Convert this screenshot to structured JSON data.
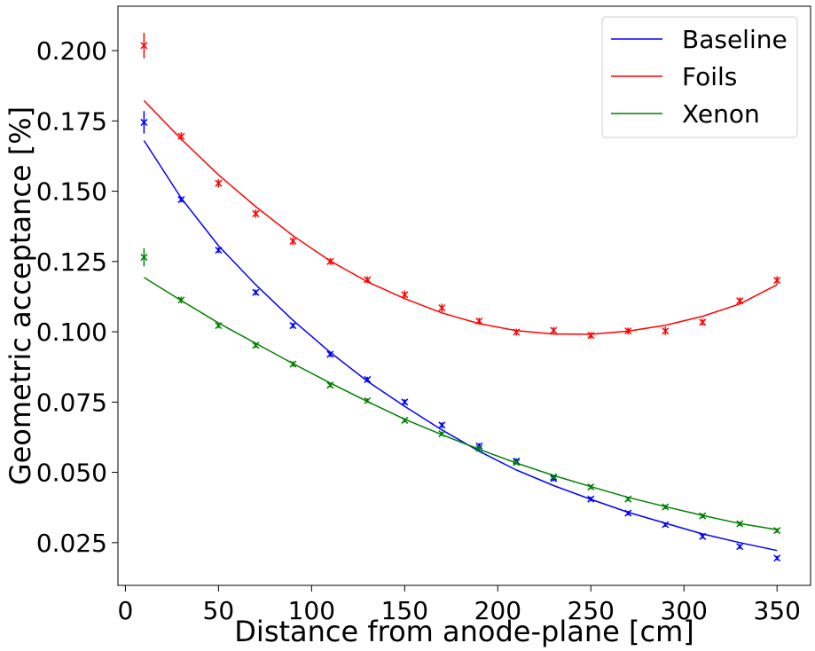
{
  "chart_data": {
    "type": "scatter",
    "xlabel": "Distance from anode-plane [cm]",
    "ylabel": "Geometric acceptance [%]",
    "xlim": [
      -4,
      368
    ],
    "ylim": [
      0.0098,
      0.2158
    ],
    "xticks": [
      0,
      50,
      100,
      150,
      200,
      250,
      300,
      350
    ],
    "xtick_labels": [
      "0",
      "50",
      "100",
      "150",
      "200",
      "250",
      "300",
      "350"
    ],
    "yticks": [
      0.025,
      0.05,
      0.075,
      0.1,
      0.125,
      0.15,
      0.175,
      0.2
    ],
    "ytick_labels": [
      "0.025",
      "0.050",
      "0.075",
      "0.100",
      "0.125",
      "0.150",
      "0.175",
      "0.200"
    ],
    "grid": false,
    "legend_position": "top-right",
    "x": [
      10,
      30,
      50,
      70,
      90,
      110,
      130,
      150,
      170,
      190,
      210,
      230,
      250,
      270,
      290,
      310,
      330,
      350
    ],
    "series": [
      {
        "name": "Baseline",
        "color": "#0000ff",
        "values": [
          0.1745,
          0.147,
          0.129,
          0.114,
          0.1022,
          0.092,
          0.083,
          0.075,
          0.0668,
          0.0594,
          0.054,
          0.0478,
          0.0405,
          0.0355,
          0.0314,
          0.0272,
          0.0236,
          0.0195
        ],
        "errors": [
          0.004,
          0.001,
          0.001,
          0.001,
          0.001,
          0.001,
          0.001,
          0.001,
          0.001,
          0.001,
          0.001,
          0.001,
          0.0008,
          0.0008,
          0.0008,
          0.0008,
          0.0008,
          0.0008
        ],
        "fit": [
          0.168,
          0.1475,
          0.1306,
          0.1167,
          0.1041,
          0.0927,
          0.0824,
          0.0735,
          0.0651,
          0.0575,
          0.0508,
          0.0453,
          0.0404,
          0.0358,
          0.0319,
          0.0281,
          0.025,
          0.0222
        ]
      },
      {
        "name": "Foils",
        "color": "#ff0000",
        "values": [
          0.2018,
          0.1695,
          0.1528,
          0.142,
          0.1322,
          0.125,
          0.1185,
          0.1132,
          0.1085,
          0.1038,
          0.0999,
          0.1005,
          0.0987,
          0.1003,
          0.1003,
          0.1034,
          0.111,
          0.1183
        ],
        "errors": [
          0.0045,
          0.0015,
          0.0015,
          0.0015,
          0.0015,
          0.0012,
          0.0012,
          0.0015,
          0.0015,
          0.0012,
          0.0012,
          0.0012,
          0.0012,
          0.0012,
          0.0015,
          0.0012,
          0.0012,
          0.0015
        ],
        "fit": [
          0.1822,
          0.1685,
          0.1558,
          0.1445,
          0.1342,
          0.1252,
          0.1178,
          0.1118,
          0.1067,
          0.1029,
          0.1004,
          0.0992,
          0.0991,
          0.1002,
          0.1023,
          0.1055,
          0.1099,
          0.1167
        ]
      },
      {
        "name": "Xenon",
        "color": "#008000",
        "values": [
          0.1265,
          0.1113,
          0.1022,
          0.0952,
          0.0885,
          0.081,
          0.0755,
          0.0685,
          0.0637,
          0.0585,
          0.0535,
          0.0484,
          0.0448,
          0.0405,
          0.0377,
          0.0345,
          0.0317,
          0.0293
        ],
        "errors": [
          0.0032,
          0.0012,
          0.001,
          0.001,
          0.001,
          0.0008,
          0.0008,
          0.0008,
          0.0008,
          0.0008,
          0.0008,
          0.0008,
          0.0008,
          0.0008,
          0.0008,
          0.0008,
          0.0008,
          0.0008
        ],
        "fit": [
          0.1193,
          0.1111,
          0.1031,
          0.0959,
          0.0887,
          0.0818,
          0.0752,
          0.0689,
          0.0634,
          0.0582,
          0.0533,
          0.0489,
          0.0449,
          0.0411,
          0.0378,
          0.0347,
          0.0318,
          0.0296
        ]
      }
    ]
  }
}
